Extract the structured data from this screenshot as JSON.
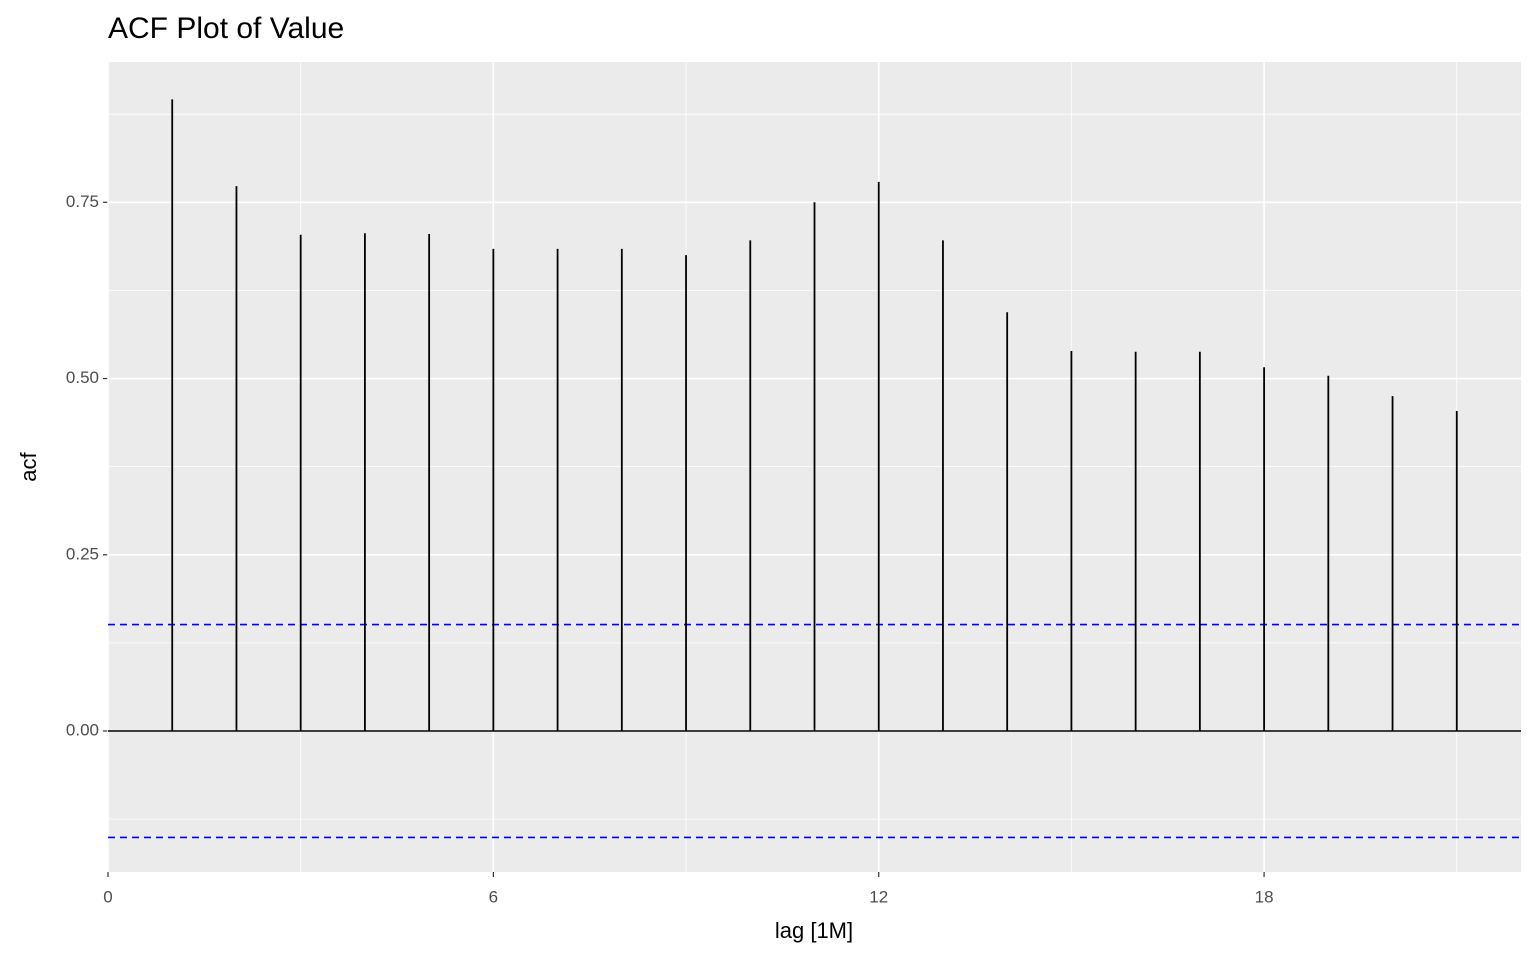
{
  "chart_data": {
    "type": "acf",
    "title": "ACF Plot of Value",
    "x_label": "lag [1M]",
    "y_label": "acf",
    "x": [
      1,
      2,
      3,
      4,
      5,
      6,
      7,
      8,
      9,
      10,
      11,
      12,
      13,
      14,
      15,
      16,
      17,
      18,
      19,
      20,
      21
    ],
    "values": [
      0.896,
      0.773,
      0.704,
      0.706,
      0.705,
      0.684,
      0.684,
      0.684,
      0.675,
      0.696,
      0.75,
      0.779,
      0.696,
      0.594,
      0.539,
      0.538,
      0.538,
      0.516,
      0.504,
      0.475,
      0.454
    ],
    "color": "#000000",
    "ci": [
      0.151,
      -0.151
    ],
    "ci_color": "#0000ff",
    "xlim": [
      0,
      22
    ],
    "xticks": [
      0,
      6,
      12,
      18
    ],
    "ylim": [
      -0.2,
      0.949
    ],
    "yticks": [
      {
        "value": 0,
        "label": "0.00"
      },
      0.25,
      {
        "value": 0.5,
        "label": "0.50"
      },
      0.75
    ],
    "x_minor_grid": [
      3,
      9,
      15,
      21
    ],
    "y_minor_grid": [
      -0.125,
      0.125,
      0.375,
      0.625,
      0.875
    ],
    "grid": true
  }
}
